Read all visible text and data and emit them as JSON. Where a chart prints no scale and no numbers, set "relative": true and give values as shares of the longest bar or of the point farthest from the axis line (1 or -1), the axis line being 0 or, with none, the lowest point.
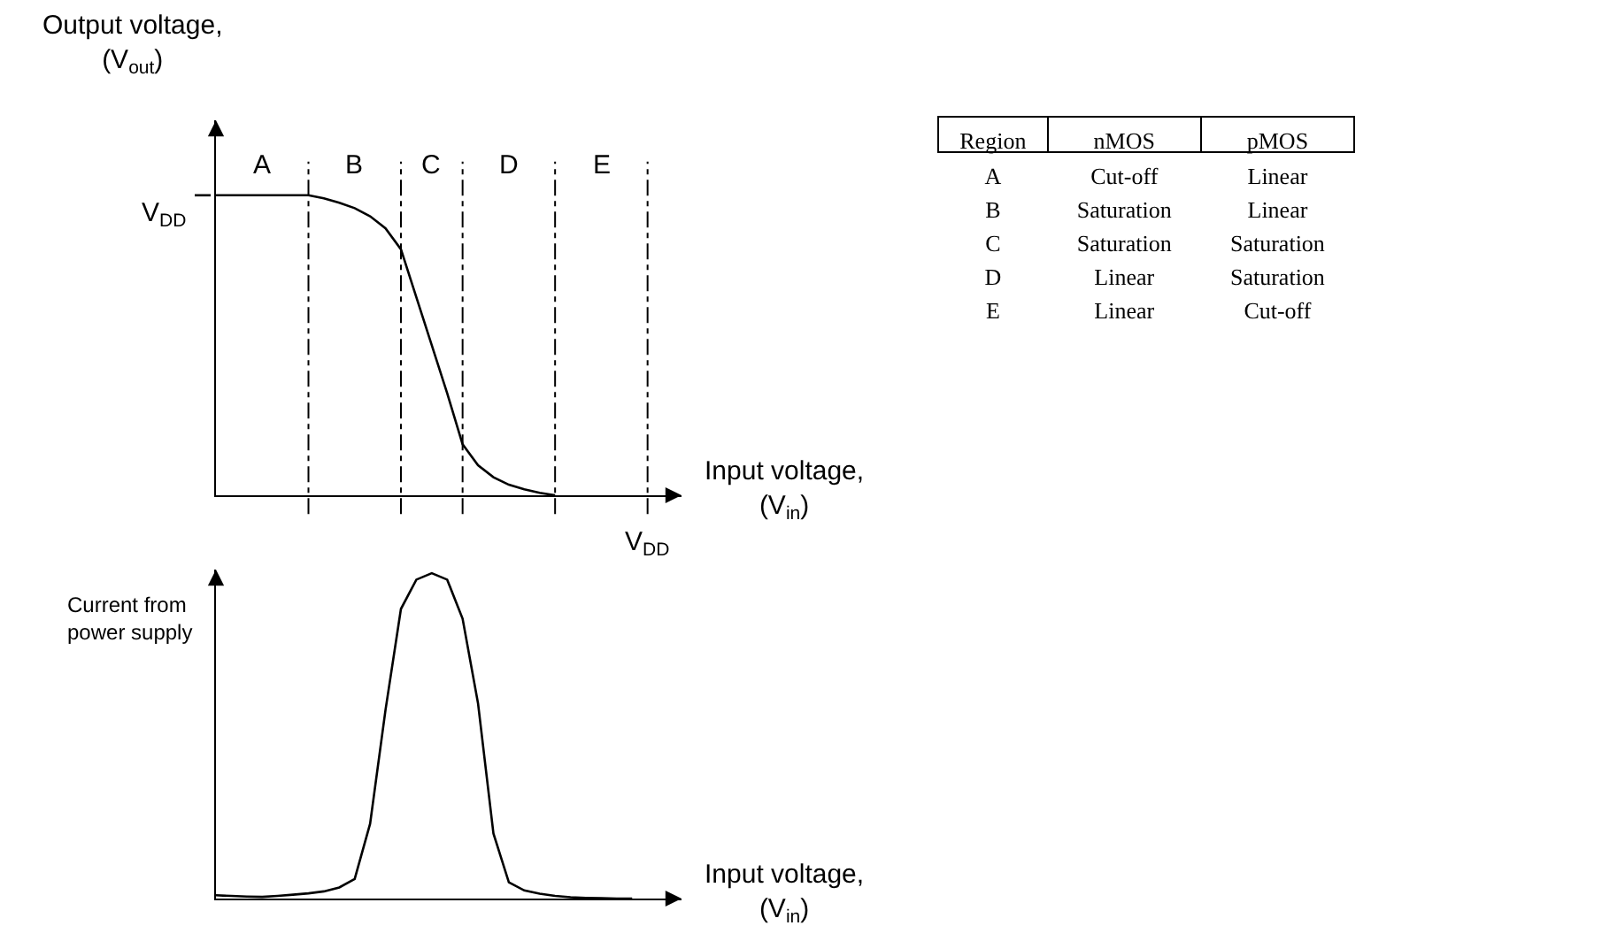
{
  "chart_data": [
    {
      "type": "line",
      "relative": true,
      "ylabel": "Output voltage,\n(V$_{out}$)",
      "xlabel": "Input voltage,\n(V$_{in}$)",
      "categories": [
        null,
        null,
        null,
        null,
        null,
        null,
        null,
        null,
        null,
        null,
        null,
        null,
        null,
        null,
        null,
        null,
        null,
        null,
        null,
        null,
        null,
        null,
        null,
        null,
        null,
        null,
        null,
        null,
        null,
        null,
        null
      ],
      "series": [
        {
          "color": "#000000",
          "values": [
            1,
            1,
            1,
            1,
            1,
            1,
            1,
            0.99,
            0.975,
            0.957,
            0.93,
            0.89,
            0.82,
            0.66,
            0.5,
            0.34,
            0.17,
            0.1,
            0.06,
            0.035,
            0.02,
            0.008,
            0,
            null,
            null,
            null,
            null,
            null,
            null,
            null,
            null
          ]
        }
      ],
      "grid": "x",
      "annotations": [
        "A",
        "B",
        "C",
        "D",
        "E",
        "V$_{DD}$",
        "V$_{DD}$"
      ]
    },
    {
      "type": "line",
      "relative": true,
      "ylabel": "Current from\npower supply",
      "xlabel": "Input voltage,\n(V$_{in}$)",
      "categories": [
        null,
        null,
        null,
        null,
        null,
        null,
        null,
        null,
        null,
        null,
        null,
        null,
        null,
        null,
        null,
        null,
        null,
        null,
        null,
        null,
        null,
        null,
        null,
        null,
        null,
        null,
        null,
        null,
        null,
        null,
        null
      ],
      "series": [
        {
          "color": "#000000",
          "values": [
            0.01,
            0.008,
            0.006,
            0.005,
            0.008,
            0.012,
            0.016,
            0.022,
            0.034,
            0.06,
            0.23,
            0.58,
            0.89,
            0.98,
            1,
            0.98,
            0.86,
            0.6,
            0.2,
            0.05,
            0.025,
            0.015,
            0.008,
            0.004,
            0.002,
            0.001,
            0,
            0,
            null,
            null,
            null
          ]
        }
      ]
    },
    {
      "type": "other",
      "ylabel": "Region",
      "categories": [
        "nMOS",
        "pMOS"
      ],
      "y_categories": [
        "A",
        "B",
        "C",
        "D",
        "E"
      ],
      "cell_labels": [
        [
          "Cut-off",
          "Linear"
        ],
        [
          "Saturation",
          "Linear"
        ],
        [
          "Saturation",
          "Saturation"
        ],
        [
          "Linear",
          "Saturation"
        ],
        [
          "Linear",
          "Cut-off"
        ]
      ]
    }
  ]
}
